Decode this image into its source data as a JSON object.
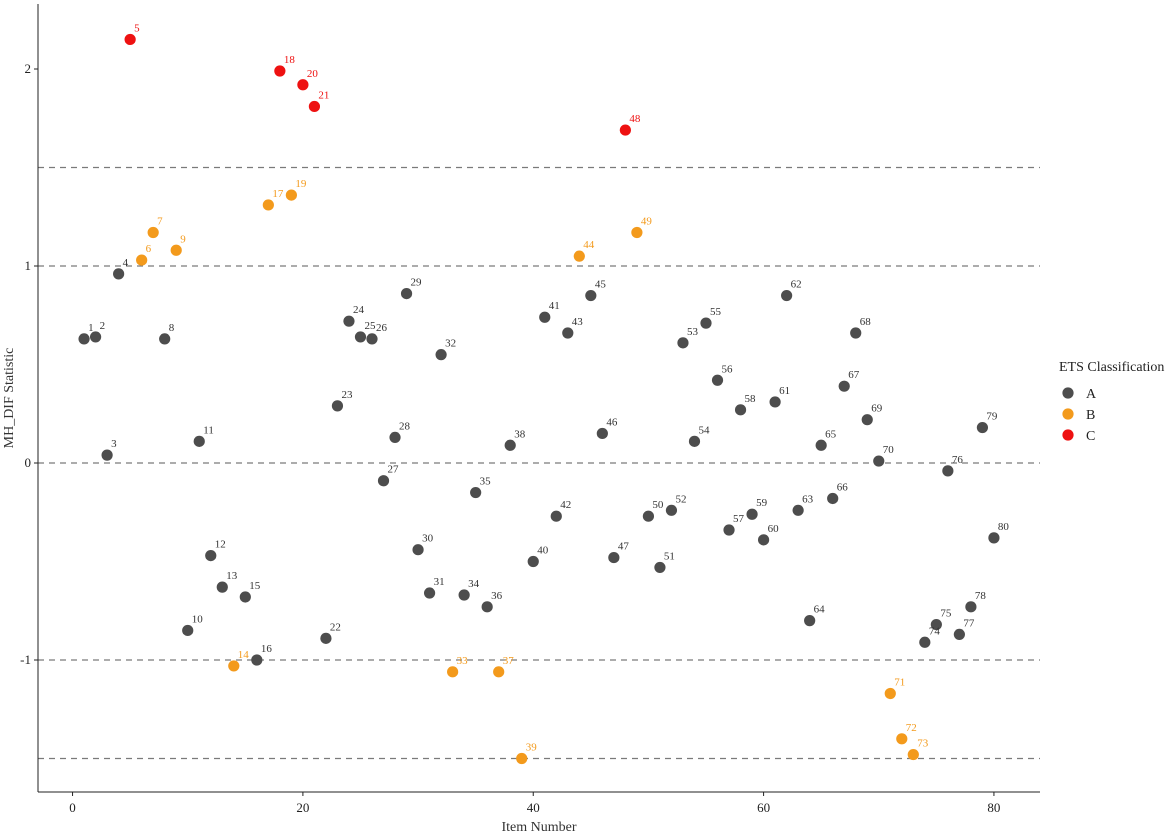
{
  "chart_data": {
    "type": "scatter",
    "title": "",
    "xlabel": "Item Number",
    "ylabel": "MH_DIF Statistic",
    "xlim": [
      -3,
      84
    ],
    "ylim": [
      -1.67,
      2.33
    ],
    "x_ticks": [
      0,
      20,
      40,
      60,
      80
    ],
    "y_ticks": [
      -1,
      0,
      1,
      2
    ],
    "grid": false,
    "reference_lines": [
      -1.5,
      -1,
      0,
      1,
      1.5
    ],
    "legend": {
      "title": "ETS Classification",
      "position": "right",
      "entries": [
        {
          "name": "A",
          "color": "#4d4d4d"
        },
        {
          "name": "B",
          "color": "#f39a1c"
        },
        {
          "name": "C",
          "color": "#ee1111"
        }
      ]
    },
    "points": [
      {
        "x": 1,
        "y": 0.63,
        "label": "1",
        "class": "A"
      },
      {
        "x": 2,
        "y": 0.64,
        "label": "2",
        "class": "A"
      },
      {
        "x": 3,
        "y": 0.04,
        "label": "3",
        "class": "A"
      },
      {
        "x": 4,
        "y": 0.96,
        "label": "4",
        "class": "A"
      },
      {
        "x": 5,
        "y": 2.15,
        "label": "5",
        "class": "C"
      },
      {
        "x": 6,
        "y": 1.03,
        "label": "6",
        "class": "B"
      },
      {
        "x": 7,
        "y": 1.17,
        "label": "7",
        "class": "B"
      },
      {
        "x": 8,
        "y": 0.63,
        "label": "8",
        "class": "A"
      },
      {
        "x": 9,
        "y": 1.08,
        "label": "9",
        "class": "B"
      },
      {
        "x": 10,
        "y": -0.85,
        "label": "10",
        "class": "A"
      },
      {
        "x": 11,
        "y": 0.11,
        "label": "11",
        "class": "A"
      },
      {
        "x": 12,
        "y": -0.47,
        "label": "12",
        "class": "A"
      },
      {
        "x": 13,
        "y": -0.63,
        "label": "13",
        "class": "A"
      },
      {
        "x": 14,
        "y": -1.03,
        "label": "14",
        "class": "B"
      },
      {
        "x": 15,
        "y": -0.68,
        "label": "15",
        "class": "A"
      },
      {
        "x": 16,
        "y": -1.0,
        "label": "16",
        "class": "A"
      },
      {
        "x": 17,
        "y": 1.31,
        "label": "17",
        "class": "B"
      },
      {
        "x": 18,
        "y": 1.99,
        "label": "18",
        "class": "C"
      },
      {
        "x": 19,
        "y": 1.36,
        "label": "19",
        "class": "B"
      },
      {
        "x": 20,
        "y": 1.92,
        "label": "20",
        "class": "C"
      },
      {
        "x": 21,
        "y": 1.81,
        "label": "21",
        "class": "C"
      },
      {
        "x": 22,
        "y": -0.89,
        "label": "22",
        "class": "A"
      },
      {
        "x": 23,
        "y": 0.29,
        "label": "23",
        "class": "A"
      },
      {
        "x": 24,
        "y": 0.72,
        "label": "24",
        "class": "A"
      },
      {
        "x": 25,
        "y": 0.64,
        "label": "25",
        "class": "A"
      },
      {
        "x": 26,
        "y": 0.63,
        "label": "26",
        "class": "A"
      },
      {
        "x": 27,
        "y": -0.09,
        "label": "27",
        "class": "A"
      },
      {
        "x": 28,
        "y": 0.13,
        "label": "28",
        "class": "A"
      },
      {
        "x": 29,
        "y": 0.86,
        "label": "29",
        "class": "A"
      },
      {
        "x": 30,
        "y": -0.44,
        "label": "30",
        "class": "A"
      },
      {
        "x": 31,
        "y": -0.66,
        "label": "31",
        "class": "A"
      },
      {
        "x": 32,
        "y": 0.55,
        "label": "32",
        "class": "A"
      },
      {
        "x": 33,
        "y": -1.06,
        "label": "33",
        "class": "B"
      },
      {
        "x": 34,
        "y": -0.67,
        "label": "34",
        "class": "A"
      },
      {
        "x": 35,
        "y": -0.15,
        "label": "35",
        "class": "A"
      },
      {
        "x": 36,
        "y": -0.73,
        "label": "36",
        "class": "A"
      },
      {
        "x": 37,
        "y": -1.06,
        "label": "37",
        "class": "B"
      },
      {
        "x": 38,
        "y": 0.09,
        "label": "38",
        "class": "A"
      },
      {
        "x": 39,
        "y": -1.5,
        "label": "39",
        "class": "B"
      },
      {
        "x": 40,
        "y": -0.5,
        "label": "40",
        "class": "A"
      },
      {
        "x": 41,
        "y": 0.74,
        "label": "41",
        "class": "A"
      },
      {
        "x": 42,
        "y": -0.27,
        "label": "42",
        "class": "A"
      },
      {
        "x": 43,
        "y": 0.66,
        "label": "43",
        "class": "A"
      },
      {
        "x": 44,
        "y": 1.05,
        "label": "44",
        "class": "B"
      },
      {
        "x": 45,
        "y": 0.85,
        "label": "45",
        "class": "A"
      },
      {
        "x": 46,
        "y": 0.15,
        "label": "46",
        "class": "A"
      },
      {
        "x": 47,
        "y": -0.48,
        "label": "47",
        "class": "A"
      },
      {
        "x": 48,
        "y": 1.69,
        "label": "48",
        "class": "C"
      },
      {
        "x": 49,
        "y": 1.17,
        "label": "49",
        "class": "B"
      },
      {
        "x": 50,
        "y": -0.27,
        "label": "50",
        "class": "A"
      },
      {
        "x": 51,
        "y": -0.53,
        "label": "51",
        "class": "A"
      },
      {
        "x": 52,
        "y": -0.24,
        "label": "52",
        "class": "A"
      },
      {
        "x": 53,
        "y": 0.61,
        "label": "53",
        "class": "A"
      },
      {
        "x": 54,
        "y": 0.11,
        "label": "54",
        "class": "A"
      },
      {
        "x": 55,
        "y": 0.71,
        "label": "55",
        "class": "A"
      },
      {
        "x": 56,
        "y": 0.42,
        "label": "56",
        "class": "A"
      },
      {
        "x": 57,
        "y": -0.34,
        "label": "57",
        "class": "A"
      },
      {
        "x": 58,
        "y": 0.27,
        "label": "58",
        "class": "A"
      },
      {
        "x": 59,
        "y": -0.26,
        "label": "59",
        "class": "A"
      },
      {
        "x": 60,
        "y": -0.39,
        "label": "60",
        "class": "A"
      },
      {
        "x": 61,
        "y": 0.31,
        "label": "61",
        "class": "A"
      },
      {
        "x": 62,
        "y": 0.85,
        "label": "62",
        "class": "A"
      },
      {
        "x": 63,
        "y": -0.24,
        "label": "63",
        "class": "A"
      },
      {
        "x": 64,
        "y": -0.8,
        "label": "64",
        "class": "A"
      },
      {
        "x": 65,
        "y": 0.09,
        "label": "65",
        "class": "A"
      },
      {
        "x": 66,
        "y": -0.18,
        "label": "66",
        "class": "A"
      },
      {
        "x": 67,
        "y": 0.39,
        "label": "67",
        "class": "A"
      },
      {
        "x": 68,
        "y": 0.66,
        "label": "68",
        "class": "A"
      },
      {
        "x": 69,
        "y": 0.22,
        "label": "69",
        "class": "A"
      },
      {
        "x": 70,
        "y": 0.01,
        "label": "70",
        "class": "A"
      },
      {
        "x": 71,
        "y": -1.17,
        "label": "71",
        "class": "B"
      },
      {
        "x": 72,
        "y": -1.4,
        "label": "72",
        "class": "B"
      },
      {
        "x": 73,
        "y": -1.48,
        "label": "73",
        "class": "B"
      },
      {
        "x": 74,
        "y": -0.91,
        "label": "74",
        "class": "A"
      },
      {
        "x": 75,
        "y": -0.82,
        "label": "75",
        "class": "A"
      },
      {
        "x": 76,
        "y": -0.04,
        "label": "76",
        "class": "A"
      },
      {
        "x": 77,
        "y": -0.87,
        "label": "77",
        "class": "A"
      },
      {
        "x": 78,
        "y": -0.73,
        "label": "78",
        "class": "A"
      },
      {
        "x": 79,
        "y": 0.18,
        "label": "79",
        "class": "A"
      },
      {
        "x": 80,
        "y": -0.38,
        "label": "80",
        "class": "A"
      }
    ]
  }
}
